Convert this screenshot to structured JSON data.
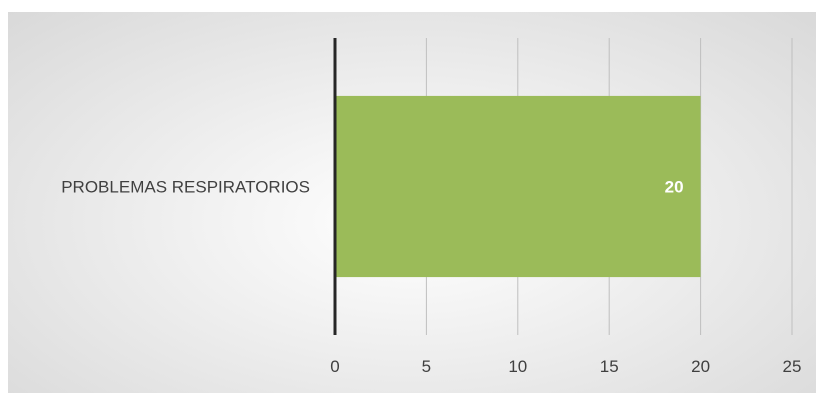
{
  "chart_data": {
    "type": "bar",
    "orientation": "horizontal",
    "categories": [
      "PROBLEMAS RESPIRATORIOS"
    ],
    "values": [
      20
    ],
    "data_labels": [
      "20"
    ],
    "x_ticks": [
      "0",
      "5",
      "10",
      "15",
      "20",
      "25"
    ],
    "xlim": [
      0,
      25
    ],
    "title": "",
    "xlabel": "",
    "ylabel": "",
    "grid": "vertical gridlines",
    "legend": "none",
    "bar_color": "#9BBB59",
    "data_label_color": "#ffffff",
    "text_color": "#404040",
    "gridline_color": "#bfbfbf",
    "axis_color": "#262626"
  }
}
